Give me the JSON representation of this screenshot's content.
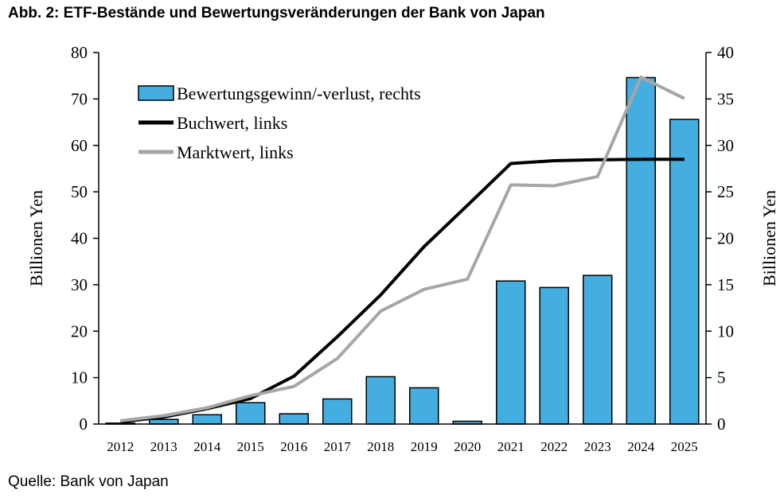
{
  "figure": {
    "title": "Abb. 2: ETF-Bestände und Bewertungsveränderungen der Bank von Japan",
    "source": "Quelle: Bank von Japan"
  },
  "chart_data": {
    "type": "bar",
    "categories": [
      "2012",
      "2013",
      "2014",
      "2015",
      "2016",
      "2017",
      "2018",
      "2019",
      "2020",
      "2021",
      "2022",
      "2023",
      "2024",
      "2025"
    ],
    "ylabel": "Billionen Yen",
    "ylabel_right": "Billionen Yen",
    "ylim": [
      0,
      80
    ],
    "ylim_right": [
      0,
      40
    ],
    "yticks": [
      0,
      10,
      20,
      30,
      40,
      50,
      60,
      70,
      80
    ],
    "yticks_right": [
      0,
      5,
      10,
      15,
      20,
      25,
      30,
      35,
      40
    ],
    "grid": false,
    "legend_position": "top-left",
    "series": [
      {
        "name": "Bewertungsgewinn/-verlust, rechts",
        "type": "bar",
        "axis": "right",
        "color": "#45AEE0",
        "values": [
          0.1,
          0.5,
          1.0,
          2.3,
          1.1,
          2.7,
          5.1,
          3.9,
          0.3,
          15.4,
          14.7,
          16.0,
          37.3,
          32.8
        ]
      },
      {
        "name": "Buchwert, links",
        "type": "line",
        "axis": "left",
        "color": "#000000",
        "values": [
          0.5,
          1.5,
          3.3,
          5.5,
          10.3,
          18.8,
          27.8,
          38.2,
          47.1,
          56.1,
          56.7,
          56.9,
          57.0,
          57.0
        ]
      },
      {
        "name": "Marktwert, links",
        "type": "line",
        "axis": "left",
        "color": "#A6A6A6",
        "values": [
          0.7,
          1.8,
          3.5,
          6.1,
          8.1,
          14.1,
          24.3,
          29.0,
          31.2,
          51.5,
          51.3,
          53.3,
          74.7,
          70.1
        ]
      }
    ]
  }
}
